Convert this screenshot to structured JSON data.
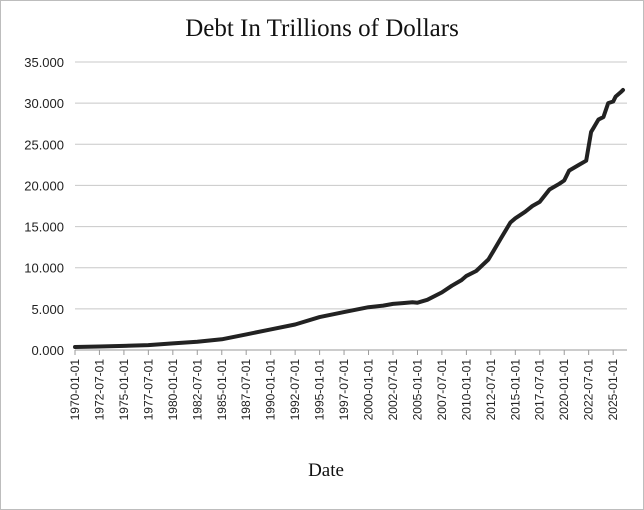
{
  "chart_data": {
    "type": "line",
    "title": "Debt In Trillions of Dollars",
    "xlabel": "Date",
    "ylabel": "",
    "ylim": [
      0,
      35
    ],
    "yticks": [
      "0.000",
      "5.000",
      "10.000",
      "15.000",
      "20.000",
      "25.000",
      "30.000",
      "35.000"
    ],
    "xticks": [
      "1970-01-01",
      "1972-07-01",
      "1975-01-01",
      "1977-07-01",
      "1980-01-01",
      "1982-07-01",
      "1985-01-01",
      "1987-07-01",
      "1990-01-01",
      "1992-07-01",
      "1995-01-01",
      "1997-07-01",
      "2000-01-01",
      "2002-07-01",
      "2005-01-01",
      "2007-07-01",
      "2010-01-01",
      "2012-07-01",
      "2015-01-01",
      "2017-07-01",
      "2020-01-01",
      "2022-07-01",
      "2025-01-01"
    ],
    "grid": true,
    "legend": "none",
    "line_color": "#222222",
    "series": [
      {
        "x": [
          "1970-01-01",
          "1972-07-01",
          "1975-01-01",
          "1977-07-01",
          "1980-01-01",
          "1982-07-01",
          "1985-01-01",
          "1987-07-01",
          "1990-01-01",
          "1992-07-01",
          "1995-01-01",
          "1997-07-01",
          "2000-01-01",
          "2001-07-01",
          "2002-07-01",
          "2003-07-01",
          "2004-07-01",
          "2005-01-01",
          "2006-01-01",
          "2007-07-01",
          "2008-07-01",
          "2009-07-01",
          "2010-01-01",
          "2011-01-01",
          "2012-04-01",
          "2012-10-01",
          "2013-07-01",
          "2014-07-01",
          "2015-01-01",
          "2016-01-01",
          "2016-10-01",
          "2017-07-01",
          "2018-07-01",
          "2019-07-01",
          "2020-01-01",
          "2020-07-01",
          "2021-07-01",
          "2022-04-01",
          "2022-10-01",
          "2023-01-01",
          "2023-07-01",
          "2024-01-01",
          "2024-07-01",
          "2025-01-01",
          "2025-04-01",
          "2025-10-01",
          "2026-01-01"
        ],
        "values": [
          0.37,
          0.43,
          0.5,
          0.6,
          0.8,
          1.0,
          1.3,
          1.9,
          2.5,
          3.1,
          4.0,
          4.6,
          5.2,
          5.4,
          5.6,
          5.7,
          5.8,
          5.75,
          6.1,
          7.0,
          7.8,
          8.5,
          9.0,
          9.6,
          11.0,
          12.0,
          13.5,
          15.5,
          16.0,
          16.8,
          17.5,
          18.0,
          19.5,
          20.2,
          20.6,
          21.8,
          22.5,
          23.0,
          26.5,
          27.0,
          28.0,
          28.3,
          30.0,
          30.2,
          30.8,
          31.3,
          31.6
        ]
      }
    ]
  }
}
